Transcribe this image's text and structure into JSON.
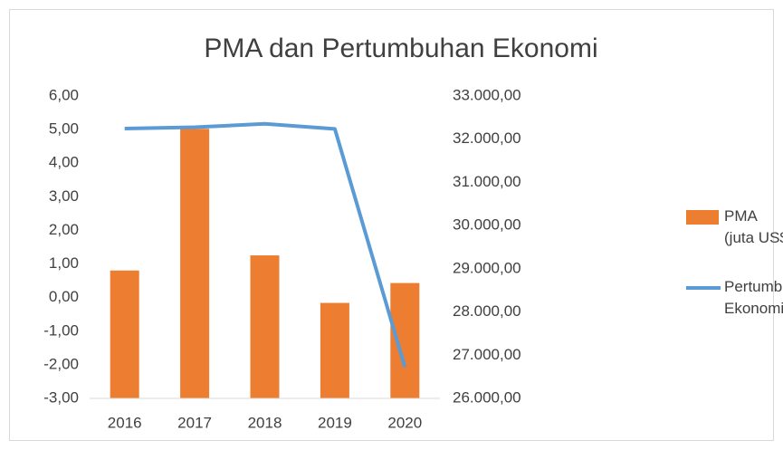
{
  "chart_data": {
    "type": "bar-line",
    "title": "PMA dan Pertumbuhan Ekonomi",
    "categories": [
      "2016",
      "2017",
      "2018",
      "2019",
      "2020"
    ],
    "series": [
      {
        "name": "PMA (juta US$)",
        "type": "bar",
        "axis": "y2",
        "color": "#ed7d31",
        "values": [
          28960,
          32240,
          29310,
          28210,
          28670
        ]
      },
      {
        "name": "Pertumbuhan Ekonomi (%)",
        "type": "line",
        "axis": "y",
        "color": "#5b9bd5",
        "values": [
          5.03,
          5.07,
          5.17,
          5.02,
          -2.07
        ]
      }
    ],
    "ylim": [
      -3,
      6
    ],
    "yticks": [
      {
        "value": -3,
        "label": "-3,00"
      },
      {
        "value": -2,
        "label": "-2,00"
      },
      {
        "value": -1,
        "label": "-1,00"
      },
      {
        "value": 0,
        "label": "0,00"
      },
      {
        "value": 1,
        "label": "1,00"
      },
      {
        "value": 2,
        "label": "2,00"
      },
      {
        "value": 3,
        "label": "3,00"
      },
      {
        "value": 4,
        "label": "4,00"
      },
      {
        "value": 5,
        "label": "5,00"
      },
      {
        "value": 6,
        "label": "6,00"
      }
    ],
    "y2lim": [
      26000,
      33000
    ],
    "y2ticks": [
      {
        "value": 26000,
        "label": "26.000,00"
      },
      {
        "value": 27000,
        "label": "27.000,00"
      },
      {
        "value": 28000,
        "label": "28.000,00"
      },
      {
        "value": 29000,
        "label": "29.000,00"
      },
      {
        "value": 30000,
        "label": "30.000,00"
      },
      {
        "value": 31000,
        "label": "31.000,00"
      },
      {
        "value": 32000,
        "label": "32.000,00"
      },
      {
        "value": 33000,
        "label": "33.000,00"
      }
    ],
    "grid": false,
    "legend": "right"
  }
}
